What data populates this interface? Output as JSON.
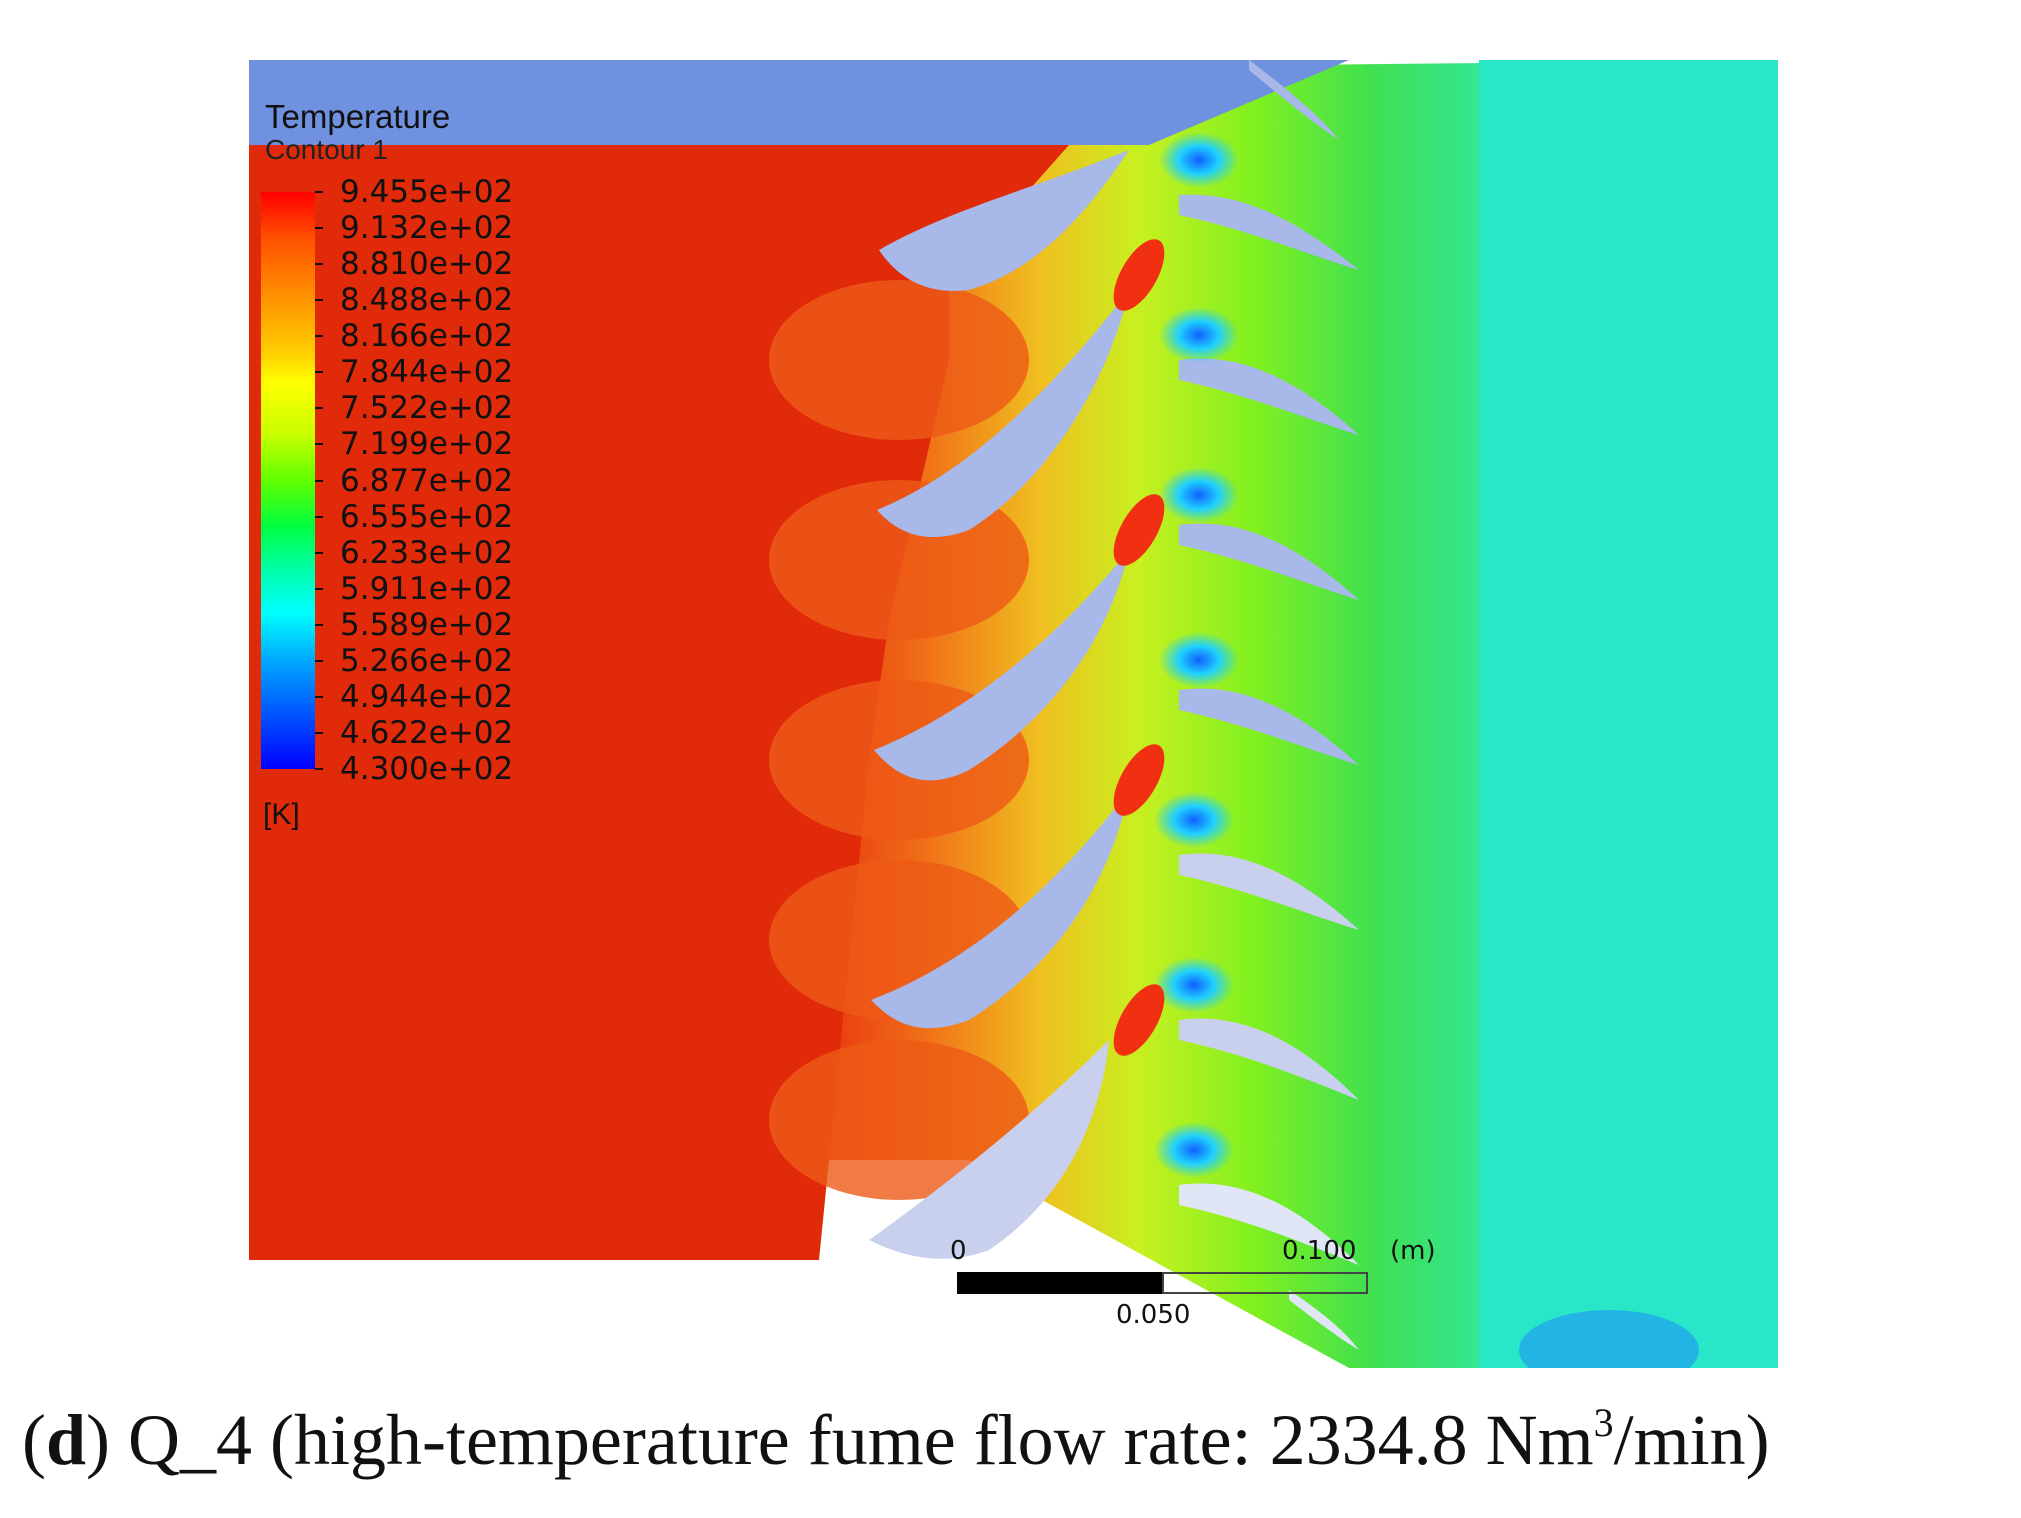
{
  "legend": {
    "title": "Temperature",
    "subtitle": "Contour 1",
    "unit": "[K]",
    "ticks": [
      "9.455e+02",
      "9.132e+02",
      "8.810e+02",
      "8.488e+02",
      "8.166e+02",
      "7.844e+02",
      "7.522e+02",
      "7.199e+02",
      "6.877e+02",
      "6.555e+02",
      "6.233e+02",
      "5.911e+02",
      "5.589e+02",
      "5.266e+02",
      "4.944e+02",
      "4.622e+02",
      "4.300e+02"
    ]
  },
  "scale_bar": {
    "zero": "0",
    "mid": "0.050",
    "max": "0.100",
    "unit": "(m)"
  },
  "caption": {
    "panel_letter": "d",
    "text": "Q_4 (high-temperature fume flow rate: 2334.8 Nm",
    "superscript": "3",
    "tail": "/min)"
  },
  "colors": {
    "hot": "#e02a0a",
    "mid_orange": "#f07010",
    "yellow_green": "#c8f020",
    "green": "#40e040",
    "cyan": "#20e0c8",
    "blade": "#a8b8e8",
    "top_band": "#7090e0"
  }
}
